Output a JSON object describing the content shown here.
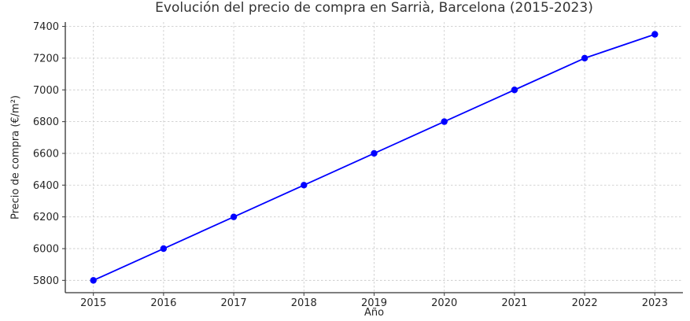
{
  "chart_data": {
    "type": "line",
    "title": "Evolución del precio de compra en Sarrià, Barcelona (2015-2023)",
    "xlabel": "Año",
    "ylabel": "Precio de compra (€/m²)",
    "x": [
      2015,
      2016,
      2017,
      2018,
      2019,
      2020,
      2021,
      2022,
      2023
    ],
    "values": [
      5800,
      6000,
      6200,
      6400,
      6600,
      6800,
      7000,
      7200,
      7350
    ],
    "x_ticks": [
      2015,
      2016,
      2017,
      2018,
      2019,
      2020,
      2021,
      2022,
      2023
    ],
    "y_ticks": [
      5800,
      6000,
      6200,
      6400,
      6600,
      6800,
      7000,
      7200,
      7400
    ],
    "xlim": [
      2014.6,
      2023.4
    ],
    "ylim": [
      5722.5,
      7427.5
    ],
    "grid": true,
    "legend": "none",
    "line_color": "#0000ff",
    "marker": "circle",
    "marker_color": "#0000ff",
    "grid_color": "#cdcdcd",
    "spine_color": "#333333",
    "tick_color": "#444444",
    "text_color": "#262626",
    "title_color": "#333333",
    "background_color": "#ffffff"
  }
}
